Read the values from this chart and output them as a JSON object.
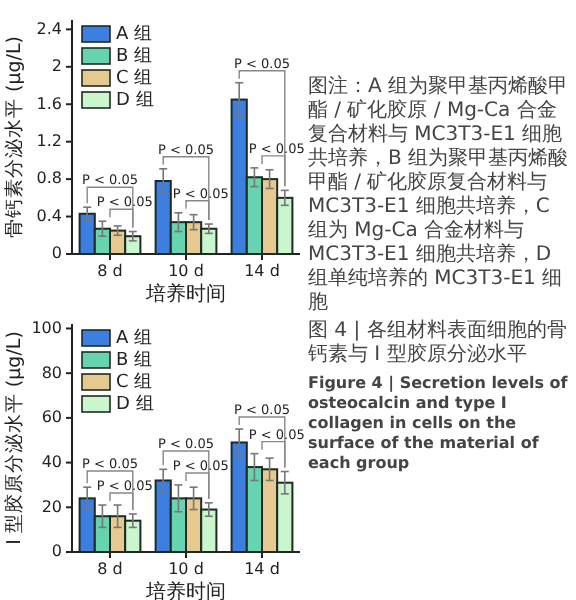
{
  "chart_data": [
    {
      "type": "bar",
      "ylabel": "骨钙素分泌水平 (μg/L)",
      "xlabel": "培养时间",
      "categories": [
        "8 d",
        "10 d",
        "14 d"
      ],
      "ylim": [
        0,
        2.5
      ],
      "yticks": [
        0,
        0.4,
        0.8,
        1.2,
        1.6,
        2.0,
        2.4
      ],
      "legend": "top left",
      "series": [
        {
          "name": "A 组",
          "color": "#3d7fe0",
          "values": [
            0.43,
            0.78,
            1.65
          ],
          "errors": [
            0.07,
            0.13,
            0.18
          ]
        },
        {
          "name": "B 组",
          "color": "#66d4b0",
          "values": [
            0.27,
            0.34,
            0.82
          ],
          "errors": [
            0.08,
            0.1,
            0.1
          ]
        },
        {
          "name": "C 组",
          "color": "#e5c98f",
          "values": [
            0.25,
            0.34,
            0.8
          ],
          "errors": [
            0.05,
            0.08,
            0.1
          ]
        },
        {
          "name": "D 组",
          "color": "#c9f6cc",
          "values": [
            0.19,
            0.27,
            0.6
          ],
          "errors": [
            0.05,
            0.05,
            0.08
          ]
        }
      ],
      "annotations": [
        "P < 0.05",
        "P < 0.05",
        "P < 0.05",
        "P < 0.05",
        "P < 0.05",
        "P < 0.05"
      ]
    },
    {
      "type": "bar",
      "ylabel": "I 型胶原分泌水平 (μg/L)",
      "xlabel": "培养时间",
      "categories": [
        "8 d",
        "10 d",
        "14 d"
      ],
      "ylim": [
        0,
        102
      ],
      "yticks": [
        0,
        20,
        40,
        60,
        80,
        100
      ],
      "legend": "top left",
      "series": [
        {
          "name": "A 组",
          "color": "#3d7fe0",
          "values": [
            24,
            32,
            49
          ],
          "errors": [
            5,
            5,
            6
          ]
        },
        {
          "name": "B 组",
          "color": "#66d4b0",
          "values": [
            16,
            24,
            38
          ],
          "errors": [
            5,
            6,
            6
          ]
        },
        {
          "name": "C 组",
          "color": "#e5c98f",
          "values": [
            16,
            24,
            37
          ],
          "errors": [
            5,
            5,
            5
          ]
        },
        {
          "name": "D 组",
          "color": "#c9f6cc",
          "values": [
            14,
            19,
            31
          ],
          "errors": [
            3,
            3,
            5
          ]
        }
      ],
      "annotations": [
        "P < 0.05",
        "P < 0.05",
        "P < 0.05",
        "P < 0.05",
        "P < 0.05",
        "P < 0.05"
      ]
    },
    {
      "type": "other",
      "title": "图 4 | 各组材料表面细胞的骨钙素与 I 型胶原分泌水平",
      "subtitle": "Figure 4 | Secretion levels of osteocalcin and type I collagen in cells on the surface of the material of each group",
      "annotations": [
        "图注：A 组为聚甲基丙烯酸甲酯 / 矿化胶原 / Mg-Ca 合金复合材料与 MC3T3-E1 细胞共培养，B 组为聚甲基丙烯酸甲酯 / 矿化胶原复合材料与 MC3T3-E1 细胞共培养，C 组为 Mg-Ca 合金材料与 MC3T3-E1 细胞共培养，D 组单纯培养的 MC3T3-E1 细胞"
      ]
    }
  ]
}
